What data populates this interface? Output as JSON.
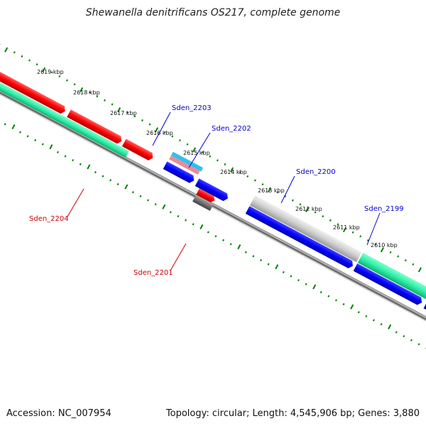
{
  "title": "Shewanella denitrificans OS217, complete genome",
  "footer": {
    "accession": "Accession: NC_007954",
    "topology": "Topology: circular; Length: 4,545,906 bp; Genes: 3,880"
  },
  "colors": {
    "backbone": "#808080",
    "ticks": "#008000",
    "label_plus": "#0000cc",
    "label_minus": "#cc0000"
  },
  "kbp_labels": [
    "2619 kbp",
    "2618 kbp",
    "2617 kbp",
    "2616 kbp",
    "2615 kbp",
    "2614 kbp",
    "2613 kbp",
    "2612 kbp",
    "2611 kbp",
    "2610 kbp"
  ],
  "gene_labels": [
    {
      "text": "Sden_2203",
      "strand": "plus"
    },
    {
      "text": "Sden_2202",
      "strand": "plus"
    },
    {
      "text": "Sden_2200",
      "strand": "plus"
    },
    {
      "text": "Sden_2199",
      "strand": "plus"
    },
    {
      "text": "Sden_2204",
      "strand": "minus"
    },
    {
      "text": "Sden_2201",
      "strand": "minus"
    }
  ]
}
